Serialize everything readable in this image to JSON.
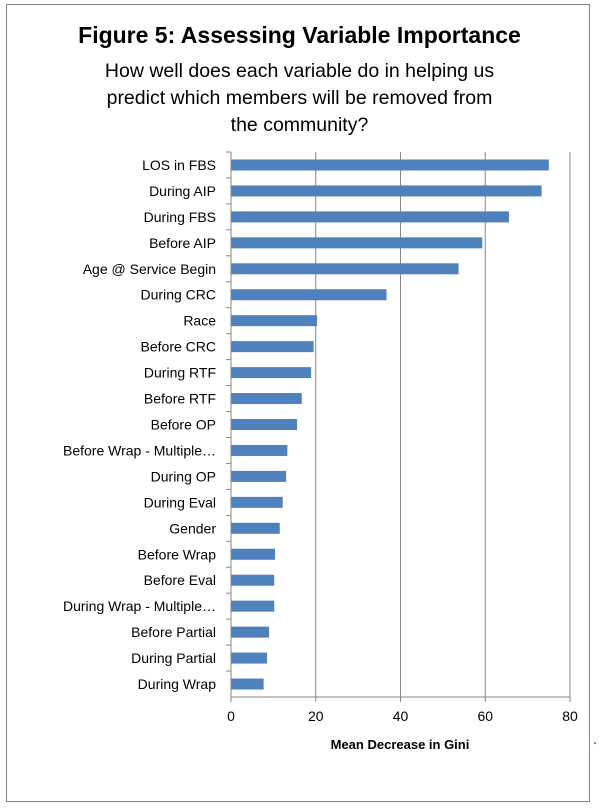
{
  "chart_data": {
    "type": "bar",
    "orientation": "horizontal",
    "title": "Figure 5: Assessing Variable Importance",
    "subtitle_lines": [
      "How well does each variable do in helping us",
      "predict which members will be removed from",
      "the community?"
    ],
    "xlabel": "Mean Decrease in Gini",
    "xlim": [
      0,
      80
    ],
    "xticks": [
      0,
      20,
      40,
      60,
      80
    ],
    "grid": "vertical",
    "bar_color": "#4f81bd",
    "categories": [
      "LOS in FBS",
      "During AIP",
      "During FBS",
      "Before AIP",
      "Age @ Service Begin",
      "During CRC",
      "Race",
      "Before CRC",
      "During RTF",
      "Before RTF",
      "Before OP",
      "Before Wrap - Multiple…",
      "During OP",
      "During Eval",
      "Gender",
      "Before Wrap",
      "Before Eval",
      "During Wrap - Multiple…",
      "Before Partial",
      "During Partial",
      "During Wrap"
    ],
    "values": [
      75,
      73.3,
      65.6,
      59.3,
      53.7,
      36.7,
      20.3,
      19.5,
      18.9,
      16.7,
      15.6,
      13.3,
      13.0,
      12.2,
      11.5,
      10.4,
      10.2,
      10.2,
      9.0,
      8.5,
      7.7
    ]
  }
}
